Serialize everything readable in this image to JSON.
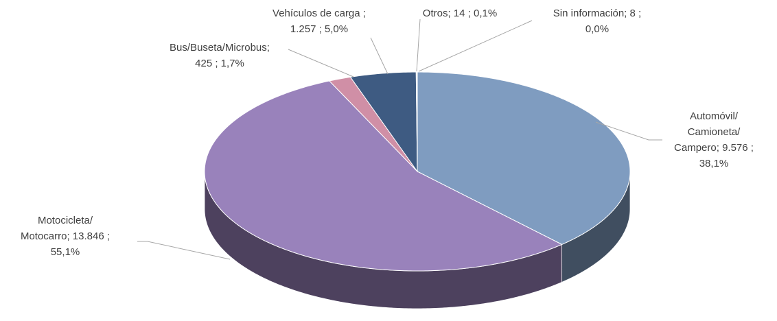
{
  "chart_data": {
    "type": "pie3d",
    "values": [
      9576,
      13846,
      425,
      1257,
      14,
      8
    ],
    "percentages": [
      38.1,
      55.1,
      1.7,
      5.0,
      0.1,
      0.0
    ],
    "labels": [
      [
        "Automóvil/",
        "Camioneta/",
        "Campero;  9.576 ;",
        "38,1%"
      ],
      [
        "Motocicleta/",
        "Motocarro;  13.846 ;",
        "55,1%"
      ],
      [
        "Bus/Buseta/Microbus;",
        "425 ; 1,7%"
      ],
      [
        "Vehículos de carga ;",
        "1.257 ; 5,0%"
      ],
      [
        "Otros;  14 ; 0,1%"
      ],
      [
        "Sin información;  8 ;",
        "0,0%"
      ]
    ],
    "colors": [
      "#7f9cc0",
      "#9982bb",
      "#d08fa6",
      "#3e5b82",
      "#7c93b5",
      "#b8c7dc"
    ]
  }
}
